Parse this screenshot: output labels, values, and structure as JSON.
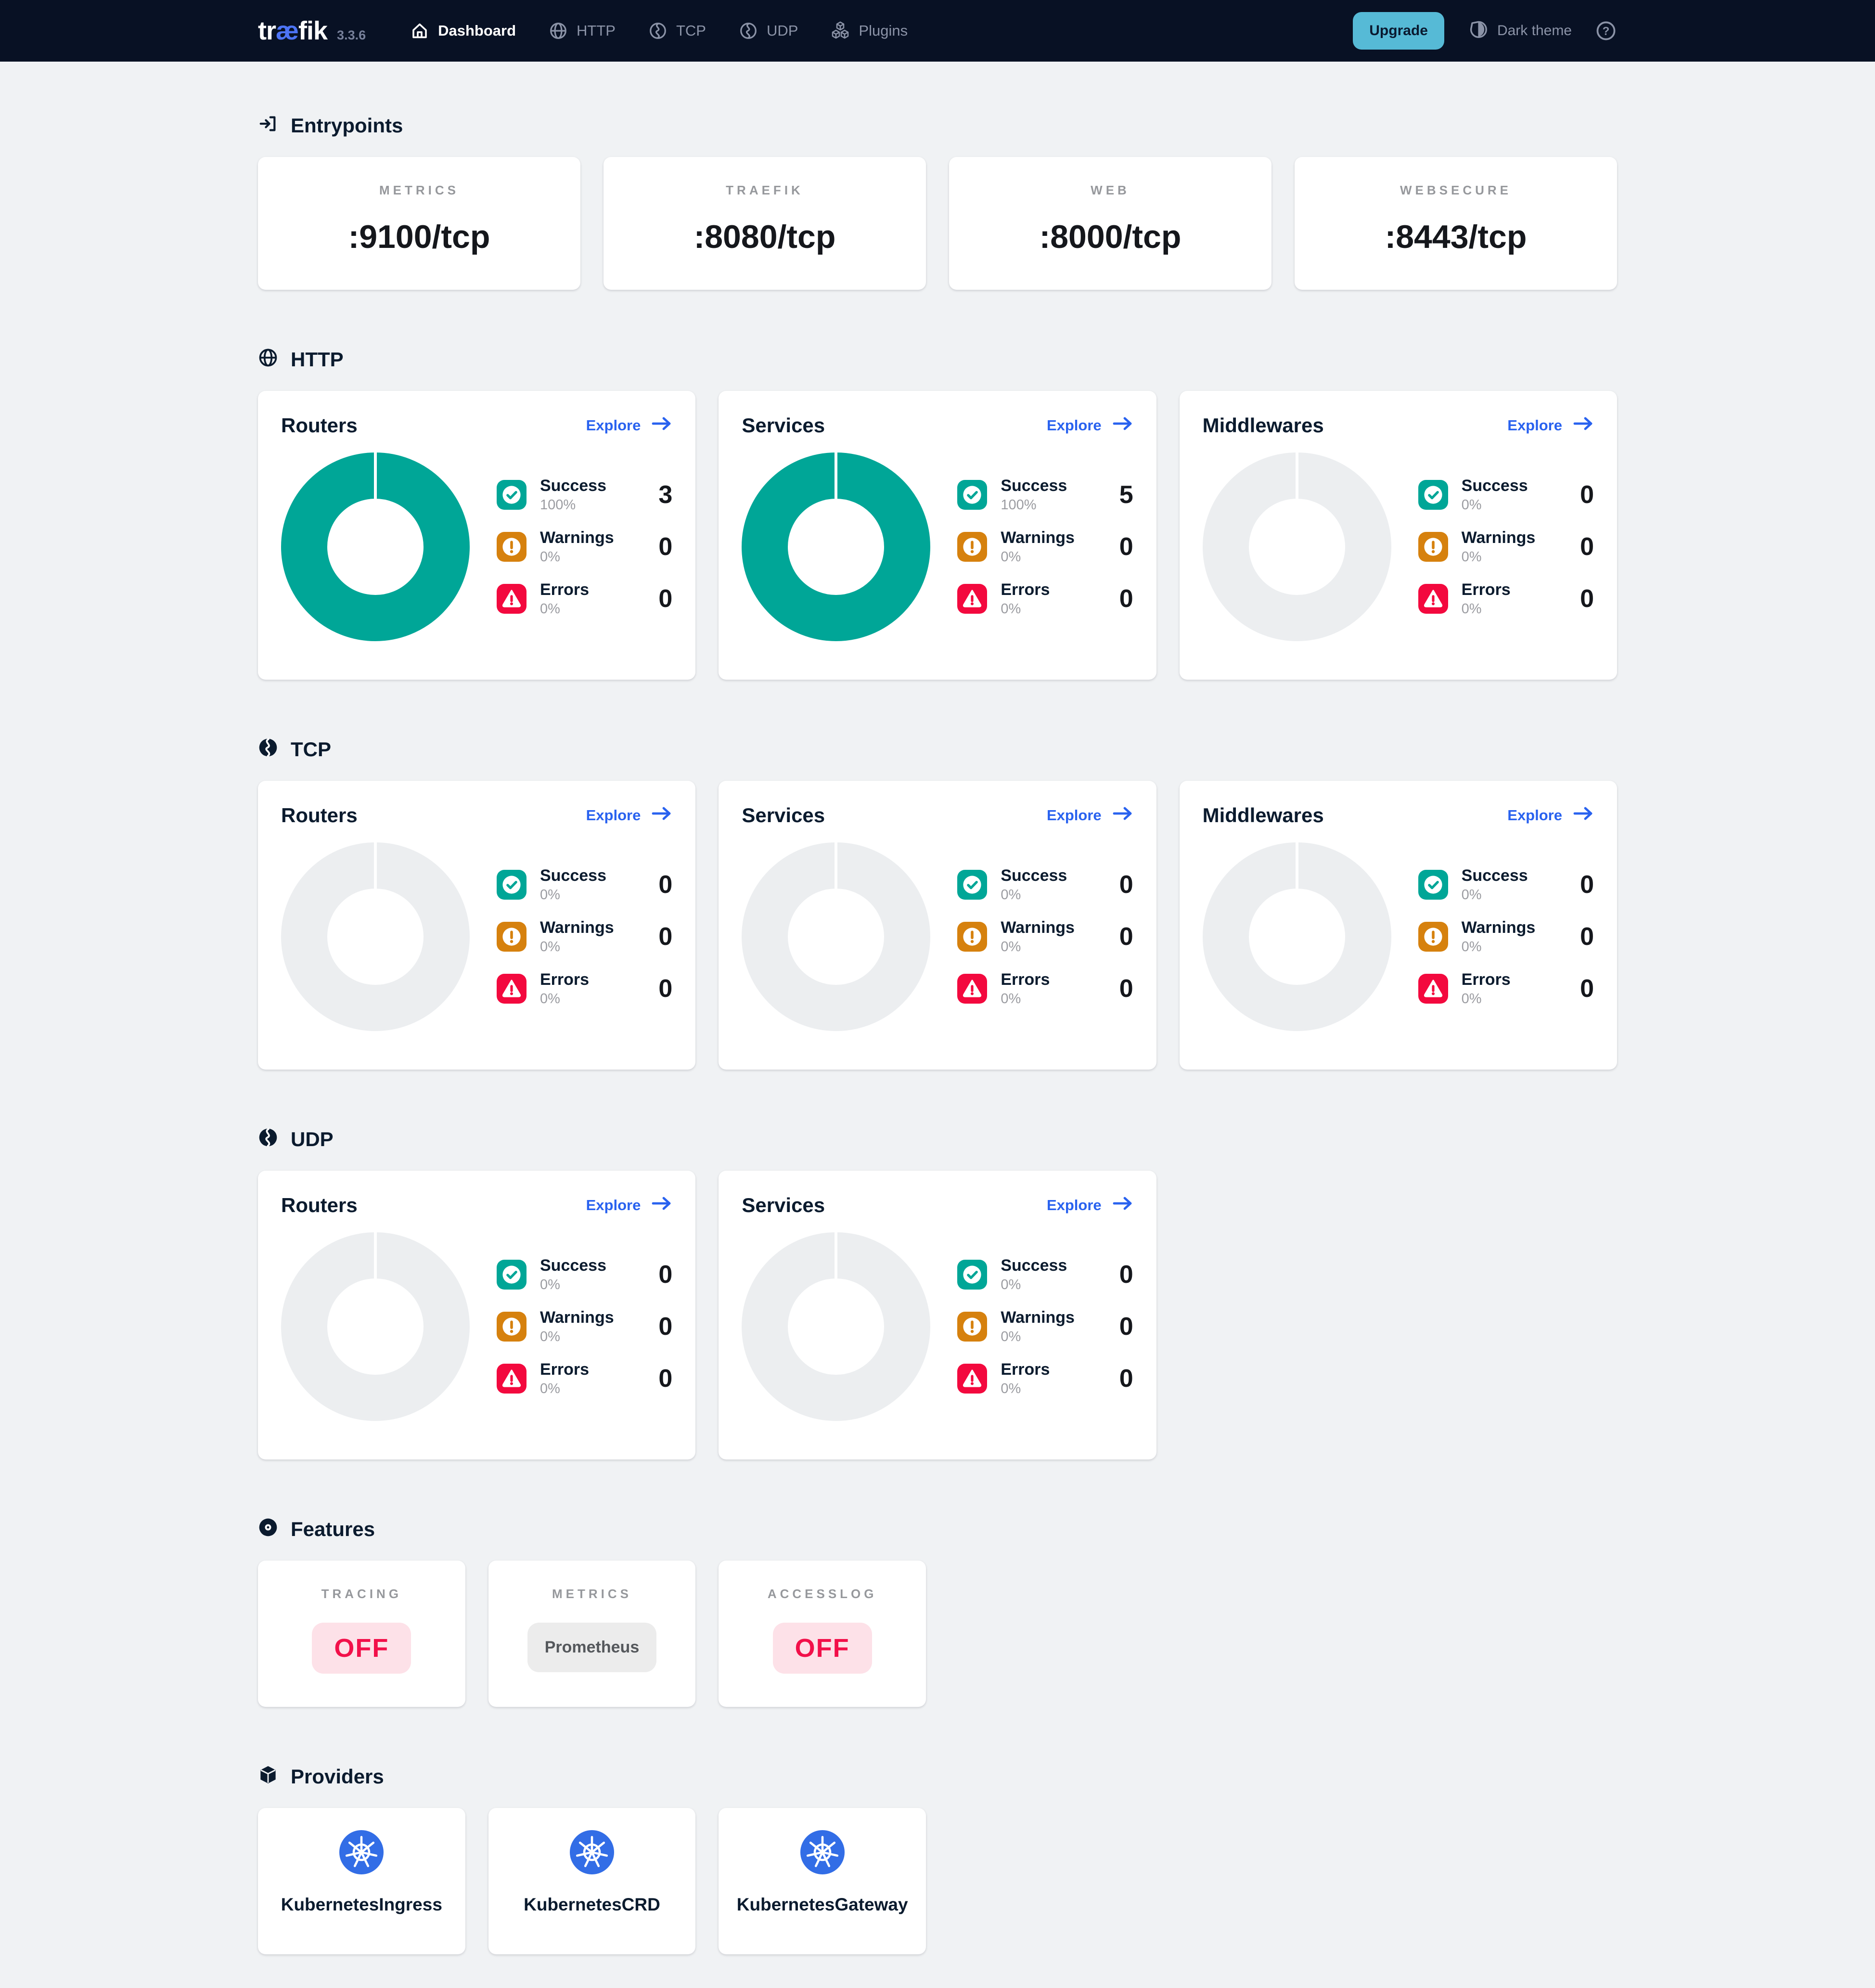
{
  "labels": {
    "explore": "Explore"
  },
  "colors": {
    "navbar": "#081124",
    "background": "#f0f2f4",
    "accent_teal": "#00a697",
    "warning_orange": "#d6810e",
    "error_red": "#f3093e",
    "link_blue": "#2962ef",
    "upgrade_blue": "#56bad6",
    "logo_ae_blue": "#4d74f5",
    "kubernetes_blue": "#326de6",
    "off_pill_bg": "#fde1e8",
    "off_pill_text": "#f2104a",
    "donut_empty": "#eceef0"
  },
  "navbar": {
    "logo_pre": "tr",
    "logo_ae": "æ",
    "logo_post": "fik",
    "version": "3.3.6",
    "nav": [
      {
        "label": "Dashboard",
        "active": true
      },
      {
        "label": "HTTP",
        "active": false
      },
      {
        "label": "TCP",
        "active": false
      },
      {
        "label": "UDP",
        "active": false
      },
      {
        "label": "Plugins",
        "active": false
      }
    ],
    "upgrade_label": "Upgrade",
    "theme_label": "Dark theme"
  },
  "sections": {
    "entrypoints": {
      "title": "Entrypoints",
      "cards": [
        {
          "label": "METRICS",
          "port": ":9100/tcp"
        },
        {
          "label": "TRAEFIK",
          "port": ":8080/tcp"
        },
        {
          "label": "WEB",
          "port": ":8000/tcp"
        },
        {
          "label": "WEBSECURE",
          "port": ":8443/tcp"
        }
      ]
    },
    "http": {
      "title": "HTTP",
      "cards": [
        {
          "title": "Routers",
          "donut_pct": 100,
          "legend": [
            {
              "label": "Success",
              "percent": "100%",
              "count": "3"
            },
            {
              "label": "Warnings",
              "percent": "0%",
              "count": "0"
            },
            {
              "label": "Errors",
              "percent": "0%",
              "count": "0"
            }
          ]
        },
        {
          "title": "Services",
          "donut_pct": 100,
          "legend": [
            {
              "label": "Success",
              "percent": "100%",
              "count": "5"
            },
            {
              "label": "Warnings",
              "percent": "0%",
              "count": "0"
            },
            {
              "label": "Errors",
              "percent": "0%",
              "count": "0"
            }
          ]
        },
        {
          "title": "Middlewares",
          "donut_pct": 0,
          "legend": [
            {
              "label": "Success",
              "percent": "0%",
              "count": "0"
            },
            {
              "label": "Warnings",
              "percent": "0%",
              "count": "0"
            },
            {
              "label": "Errors",
              "percent": "0%",
              "count": "0"
            }
          ]
        }
      ]
    },
    "tcp": {
      "title": "TCP",
      "cards": [
        {
          "title": "Routers",
          "donut_pct": 0,
          "legend": [
            {
              "label": "Success",
              "percent": "0%",
              "count": "0"
            },
            {
              "label": "Warnings",
              "percent": "0%",
              "count": "0"
            },
            {
              "label": "Errors",
              "percent": "0%",
              "count": "0"
            }
          ]
        },
        {
          "title": "Services",
          "donut_pct": 0,
          "legend": [
            {
              "label": "Success",
              "percent": "0%",
              "count": "0"
            },
            {
              "label": "Warnings",
              "percent": "0%",
              "count": "0"
            },
            {
              "label": "Errors",
              "percent": "0%",
              "count": "0"
            }
          ]
        },
        {
          "title": "Middlewares",
          "donut_pct": 0,
          "legend": [
            {
              "label": "Success",
              "percent": "0%",
              "count": "0"
            },
            {
              "label": "Warnings",
              "percent": "0%",
              "count": "0"
            },
            {
              "label": "Errors",
              "percent": "0%",
              "count": "0"
            }
          ]
        }
      ]
    },
    "udp": {
      "title": "UDP",
      "cards": [
        {
          "title": "Routers",
          "donut_pct": 0,
          "legend": [
            {
              "label": "Success",
              "percent": "0%",
              "count": "0"
            },
            {
              "label": "Warnings",
              "percent": "0%",
              "count": "0"
            },
            {
              "label": "Errors",
              "percent": "0%",
              "count": "0"
            }
          ]
        },
        {
          "title": "Services",
          "donut_pct": 0,
          "legend": [
            {
              "label": "Success",
              "percent": "0%",
              "count": "0"
            },
            {
              "label": "Warnings",
              "percent": "0%",
              "count": "0"
            },
            {
              "label": "Errors",
              "percent": "0%",
              "count": "0"
            }
          ]
        }
      ]
    },
    "features": {
      "title": "Features",
      "cards": [
        {
          "label": "TRACING",
          "value": "OFF",
          "state": "off"
        },
        {
          "label": "METRICS",
          "value": "Prometheus",
          "state": "neutral"
        },
        {
          "label": "ACCESSLOG",
          "value": "OFF",
          "state": "off"
        }
      ]
    },
    "providers": {
      "title": "Providers",
      "cards": [
        {
          "name": "KubernetesIngress"
        },
        {
          "name": "KubernetesCRD"
        },
        {
          "name": "KubernetesGateway"
        }
      ]
    }
  }
}
